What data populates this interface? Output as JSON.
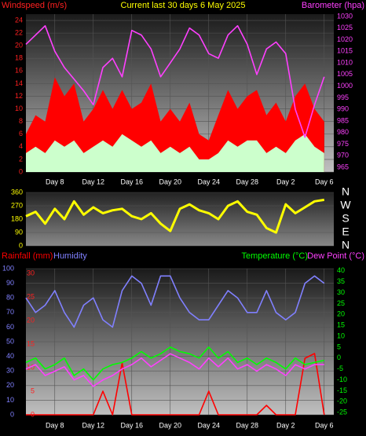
{
  "chart_data": [
    {
      "type": "area",
      "title": "Current last 30 days 6 May 2025",
      "title_color": "#ffff00",
      "y_label": "Windspeed (m/s)",
      "y_label_color": "#ff2020",
      "x": [
        0,
        1,
        2,
        3,
        4,
        5,
        6,
        7,
        8,
        9,
        10,
        11,
        12,
        13,
        14,
        15,
        16,
        17,
        18,
        19,
        20,
        21,
        22,
        23,
        24,
        25,
        26,
        27,
        28,
        29,
        30,
        31
      ],
      "xlim": [
        0,
        32
      ],
      "xticks": [
        {
          "value": 3,
          "label": "Day 8"
        },
        {
          "value": 7,
          "label": "Day 12"
        },
        {
          "value": 11,
          "label": "Day 16"
        },
        {
          "value": 15,
          "label": "Day 20"
        },
        {
          "value": 19,
          "label": "Day 24"
        },
        {
          "value": 23,
          "label": "Day 28"
        },
        {
          "value": 27,
          "label": "Day 2"
        },
        {
          "value": 31,
          "label": "Day 6"
        }
      ],
      "ylim": [
        0,
        25
      ],
      "yticks": [
        0,
        2,
        4,
        6,
        8,
        10,
        12,
        14,
        16,
        18,
        20,
        22,
        24
      ],
      "ytick_color": "#ff2020",
      "y2lim": [
        963,
        1031
      ],
      "y2ticks": [
        965,
        970,
        975,
        980,
        985,
        990,
        995,
        1000,
        1005,
        1010,
        1015,
        1020,
        1025,
        1030
      ],
      "y2tick_color": "#ff40ff",
      "grid": true,
      "series": [
        {
          "color": "#ff0000",
          "mark": "area",
          "values": [
            6,
            9,
            8,
            15,
            12,
            14,
            8,
            10,
            13,
            10,
            13,
            10,
            11,
            14,
            8,
            10,
            8,
            11,
            6,
            5,
            9,
            13,
            10,
            12,
            13,
            9,
            11,
            8,
            12,
            14,
            10,
            8
          ]
        },
        {
          "color": "#ccffcc",
          "mark": "area",
          "values": [
            3,
            4,
            3,
            5,
            4,
            5,
            3,
            4,
            5,
            4,
            6,
            5,
            4,
            5,
            3,
            4,
            3,
            4,
            2,
            2,
            3,
            5,
            4,
            5,
            5,
            3,
            4,
            3,
            5,
            6,
            4,
            3
          ]
        },
        {
          "name": "Barometer (hpa)",
          "color": "#ff40ff",
          "mark": "line",
          "axis": "y2",
          "values": [
            1018,
            1022,
            1026,
            1015,
            1008,
            1003,
            998,
            992,
            1008,
            1012,
            1004,
            1024,
            1022,
            1016,
            1004,
            1010,
            1016,
            1025,
            1022,
            1014,
            1012,
            1022,
            1026,
            1018,
            1005,
            1016,
            1019,
            1014,
            990,
            978,
            992,
            1004
          ]
        }
      ]
    },
    {
      "type": "line",
      "x": [
        0,
        1,
        2,
        3,
        4,
        5,
        6,
        7,
        8,
        9,
        10,
        11,
        12,
        13,
        14,
        15,
        16,
        17,
        18,
        19,
        20,
        21,
        22,
        23,
        24,
        25,
        26,
        27,
        28,
        29,
        30,
        31
      ],
      "xlim": [
        0,
        32
      ],
      "ylim": [
        0,
        360
      ],
      "yticks": [
        0,
        90,
        180,
        270,
        360
      ],
      "ytick_color": "#ffff00",
      "y2lim": [
        0,
        360
      ],
      "y2ticks": [
        {
          "value": 360,
          "label": "N"
        },
        {
          "value": 270,
          "label": "W"
        },
        {
          "value": 180,
          "label": "S"
        },
        {
          "value": 90,
          "label": "E"
        },
        {
          "value": 0,
          "label": "N"
        }
      ],
      "y2tick_color": "#ffffff",
      "grid": true,
      "series": [
        {
          "color": "#ffff00",
          "mark": "line",
          "values": [
            200,
            230,
            150,
            250,
            180,
            300,
            210,
            260,
            220,
            240,
            250,
            200,
            180,
            220,
            150,
            100,
            250,
            280,
            240,
            220,
            180,
            270,
            300,
            230,
            210,
            120,
            90,
            280,
            220,
            260,
            300,
            310
          ]
        }
      ]
    },
    {
      "type": "line",
      "x": [
        0,
        1,
        2,
        3,
        4,
        5,
        6,
        7,
        8,
        9,
        10,
        11,
        12,
        13,
        14,
        15,
        16,
        17,
        18,
        19,
        20,
        21,
        22,
        23,
        24,
        25,
        26,
        27,
        28,
        29,
        30,
        31
      ],
      "xlim": [
        0,
        32
      ],
      "xticks": [
        {
          "value": 3,
          "label": "Day 8"
        },
        {
          "value": 7,
          "label": "Day 12"
        },
        {
          "value": 11,
          "label": "Day 16"
        },
        {
          "value": 15,
          "label": "Day 20"
        },
        {
          "value": 19,
          "label": "Day 24"
        },
        {
          "value": 23,
          "label": "Day 28"
        },
        {
          "value": 27,
          "label": "Day 2"
        },
        {
          "value": 31,
          "label": "Day 6"
        }
      ],
      "ylim": [
        0,
        100
      ],
      "yticks": [
        0,
        10,
        20,
        30,
        40,
        50,
        60,
        70,
        80,
        90,
        100
      ],
      "ytick_color": "#8080ff",
      "y2lim": [
        -26,
        41
      ],
      "y2ticks": [
        -25,
        -20,
        -15,
        -10,
        -5,
        0,
        5,
        10,
        15,
        20,
        25,
        30,
        35,
        40
      ],
      "y2tick_color": "#00ff00",
      "y3lim": [
        0,
        31
      ],
      "y3ticks": [
        0,
        5,
        10,
        15,
        20,
        25,
        30
      ],
      "y3tick_color": "#ff2020",
      "grid": true,
      "series": [
        {
          "name": "Rainfall (mm)",
          "color": "#ff0000",
          "mark": "line",
          "axis": "y3",
          "values": [
            0,
            0,
            0,
            0,
            0,
            0,
            0,
            0,
            5,
            0,
            11,
            0,
            0,
            0,
            0,
            0,
            0,
            0,
            0,
            5,
            0,
            0,
            0,
            0,
            0,
            2,
            0,
            0,
            0,
            12,
            13,
            0
          ]
        },
        {
          "name": "Humidity",
          "color": "#8080ff",
          "mark": "line",
          "values": [
            80,
            70,
            75,
            85,
            70,
            60,
            75,
            80,
            65,
            60,
            85,
            95,
            90,
            75,
            95,
            95,
            80,
            70,
            65,
            65,
            75,
            85,
            80,
            70,
            70,
            85,
            70,
            65,
            70,
            90,
            95,
            90
          ]
        },
        {
          "name": "Temperature (°C)",
          "color": "#00ff00",
          "mark": "line",
          "axis": "y2",
          "values": [
            -2,
            0,
            -5,
            -3,
            0,
            -8,
            -5,
            -10,
            -5,
            -3,
            -2,
            0,
            3,
            0,
            2,
            5,
            3,
            2,
            0,
            5,
            0,
            3,
            -2,
            0,
            -3,
            0,
            -2,
            -5,
            0,
            -3,
            -2,
            -1
          ]
        },
        {
          "name": "Dew Point (°C)",
          "color": "#ff40ff",
          "mark": "line",
          "axis": "y2",
          "values": [
            -5,
            -3,
            -8,
            -6,
            -4,
            -10,
            -8,
            -13,
            -10,
            -8,
            -5,
            -3,
            0,
            -4,
            -1,
            2,
            0,
            -2,
            -5,
            0,
            -4,
            0,
            -5,
            -3,
            -6,
            -3,
            -5,
            -8,
            -3,
            -5,
            -3,
            -3
          ]
        }
      ]
    }
  ]
}
